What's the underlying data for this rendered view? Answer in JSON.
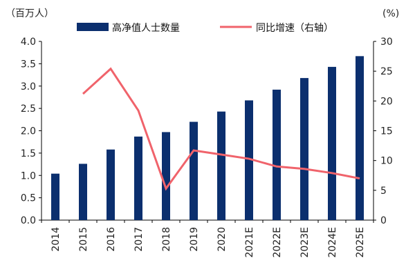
{
  "chart_data": {
    "type": "bar",
    "categories": [
      "2014",
      "2015",
      "2016",
      "2017",
      "2018",
      "2019",
      "2020",
      "2021E",
      "2022E",
      "2023E",
      "2024E",
      "2025E"
    ],
    "series": [
      {
        "name": "高净值人士数量",
        "type": "bar",
        "axis": "left",
        "color": "#0b2f6e",
        "values": [
          1.04,
          1.26,
          1.58,
          1.87,
          1.97,
          2.2,
          2.43,
          2.68,
          2.92,
          3.18,
          3.43,
          3.67
        ]
      },
      {
        "name": "同比增速（右轴）",
        "type": "line",
        "axis": "right",
        "color": "#f0636b",
        "values": [
          null,
          21.2,
          25.4,
          18.4,
          5.3,
          11.7,
          11.0,
          10.3,
          9.0,
          8.6,
          7.9,
          7.0
        ]
      }
    ],
    "y_left": {
      "unit_label": "（百万人）",
      "ylim": [
        0,
        4.0
      ],
      "ticks": [
        "0.0",
        "0.5",
        "1.0",
        "1.5",
        "2.0",
        "2.5",
        "3.0",
        "3.5",
        "4.0"
      ]
    },
    "y_right": {
      "unit_label": "(%)",
      "ylim": [
        0,
        30
      ],
      "ticks": [
        "0",
        "5",
        "10",
        "15",
        "20",
        "25",
        "30"
      ]
    },
    "grid": false,
    "legend_position": "top"
  }
}
